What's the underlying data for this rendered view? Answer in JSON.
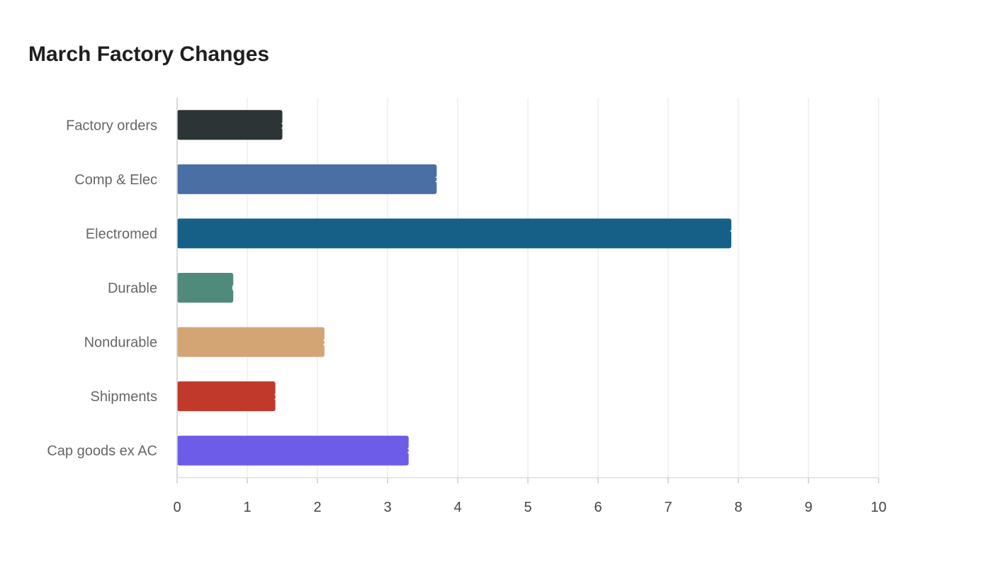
{
  "chart_data": {
    "type": "bar",
    "orientation": "horizontal",
    "title": "March Factory Changes",
    "xlabel": "",
    "ylabel": "",
    "categories": [
      "Factory orders",
      "Comp & Elec",
      "Electromed",
      "Durable",
      "Nondurable",
      "Shipments",
      "Cap goods ex AC"
    ],
    "values": [
      1.5,
      3.7,
      7.9,
      0.8,
      2.1,
      1.4,
      3.3
    ],
    "colors": [
      "#2d3436",
      "#4a6fa5",
      "#166088",
      "#4f8a7a",
      "#d4a574",
      "#c0392b",
      "#6c5ce7"
    ],
    "xlim": [
      0,
      10
    ],
    "xticks": [
      "0",
      "1",
      "2",
      "3",
      "4",
      "5",
      "6",
      "7",
      "8",
      "9",
      "10"
    ],
    "grid": true,
    "legend": "none"
  }
}
